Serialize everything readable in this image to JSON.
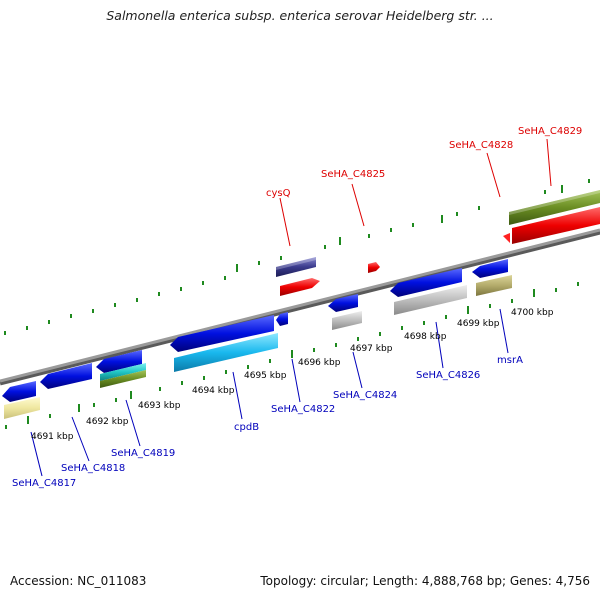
{
  "title": "Salmonella enterica subsp. enterica serovar Heidelberg str. ...",
  "footer": {
    "accession": "Accession: NC_011083",
    "summary": "Topology: circular; Length: 4,888,768 bp; Genes: 4,756"
  },
  "colors": {
    "backbone": "#888888",
    "tick": "#1f8a1f",
    "label_top": "#dd0000",
    "label_bottom": "#0000bb"
  },
  "scale_labels": [
    "4691 kbp",
    "4692 kbp",
    "4693 kbp",
    "4694 kbp",
    "4695 kbp",
    "4696 kbp",
    "4697 kbp",
    "4698 kbp",
    "4699 kbp",
    "4700 kbp"
  ],
  "gene_labels_top": [
    "cysQ",
    "SeHA_C4825",
    "SeHA_C4828",
    "SeHA_C4829"
  ],
  "gene_labels_bottom": [
    "SeHA_C4817",
    "SeHA_C4818",
    "SeHA_C4819",
    "cpdB",
    "SeHA_C4822",
    "SeHA_C4824",
    "SeHA_C4826",
    "msrA"
  ]
}
